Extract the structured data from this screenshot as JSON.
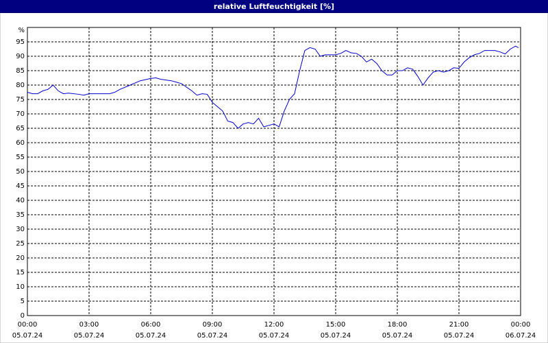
{
  "chart_data": {
    "type": "line",
    "title": "relative Luftfeuchtigkeit [%]",
    "y_label": "%",
    "x": [
      0,
      0.25,
      0.5,
      0.75,
      1,
      1.25,
      1.5,
      1.75,
      2,
      2.5,
      2.75,
      3,
      3.5,
      4,
      4.25,
      4.5,
      5,
      5.5,
      6,
      6.25,
      6.5,
      7,
      7.5,
      8,
      8.25,
      8.5,
      8.75,
      9,
      9.25,
      9.5,
      9.75,
      10,
      10.25,
      10.5,
      10.75,
      11,
      11.25,
      11.5,
      11.75,
      12,
      12.25,
      12.5,
      12.75,
      13,
      13.25,
      13.5,
      13.75,
      14,
      14.25,
      14.5,
      15,
      15.25,
      15.5,
      15.75,
      16,
      16.25,
      16.5,
      16.75,
      17,
      17.25,
      17.5,
      17.75,
      18,
      18.25,
      18.5,
      18.75,
      19,
      19.25,
      19.5,
      19.75,
      20,
      20.25,
      20.5,
      20.75,
      21,
      21.25,
      21.5,
      21.75,
      22,
      22.25,
      22.5,
      22.75,
      23,
      23.25,
      23.5,
      23.75,
      23.9
    ],
    "series": [
      {
        "name": "relative Luftfeuchtigkeit",
        "color": "#0000cc",
        "values": [
          77.5,
          77,
          77,
          78,
          78.5,
          80,
          78,
          77,
          77.2,
          76.8,
          76.5,
          77,
          77,
          77,
          77.5,
          78.5,
          80,
          81.5,
          82.3,
          82.5,
          82,
          81.5,
          80.5,
          78,
          76.5,
          77,
          76.8,
          74,
          72.5,
          71,
          67.5,
          67,
          65,
          66.5,
          67,
          66.5,
          68.5,
          65.5,
          66,
          66.5,
          65.5,
          71,
          75,
          77,
          85,
          92,
          93,
          92.5,
          90,
          90.5,
          90.5,
          91,
          92,
          91.2,
          91,
          90,
          88,
          89,
          87.5,
          85,
          83.5,
          83.5,
          85,
          85,
          86,
          85.5,
          83,
          80,
          82.5,
          84.5,
          85,
          84.5,
          85,
          86,
          85.8,
          88,
          89.5,
          90.5,
          91,
          92,
          92,
          92,
          91.5,
          90.8,
          92.5,
          93.5,
          93
        ]
      }
    ],
    "xlim": [
      0,
      24
    ],
    "xticks": [
      {
        "value": 0,
        "label": "00:00",
        "date": "05.07.24"
      },
      {
        "value": 3,
        "label": "03:00",
        "date": "05.07.24"
      },
      {
        "value": 6,
        "label": "06:00",
        "date": "05.07.24"
      },
      {
        "value": 9,
        "label": "09:00",
        "date": "05.07.24"
      },
      {
        "value": 12,
        "label": "12:00",
        "date": "05.07.24"
      },
      {
        "value": 15,
        "label": "15:00",
        "date": "05.07.24"
      },
      {
        "value": 18,
        "label": "18:00",
        "date": "05.07.24"
      },
      {
        "value": 21,
        "label": "21:00",
        "date": "05.07.24"
      },
      {
        "value": 24,
        "label": "00:00",
        "date": "06.07.24"
      }
    ],
    "ylim": [
      0,
      100
    ],
    "yticks": [
      0,
      5,
      10,
      15,
      20,
      25,
      30,
      35,
      40,
      45,
      50,
      55,
      60,
      65,
      70,
      75,
      80,
      85,
      90,
      95
    ],
    "grid": true
  }
}
